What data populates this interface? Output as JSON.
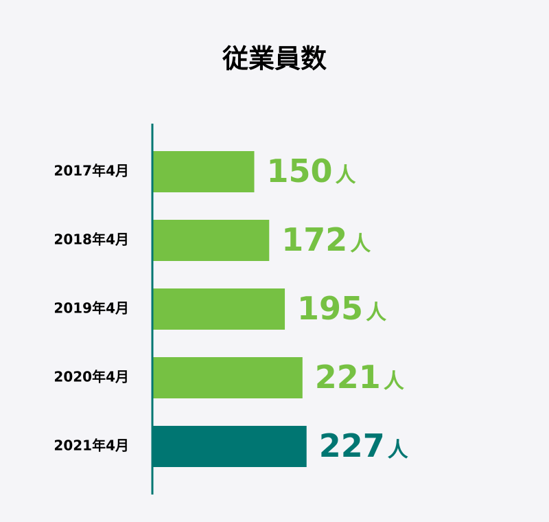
{
  "chart_data": {
    "type": "bar",
    "orientation": "horizontal",
    "title": "従業員数",
    "categories": [
      "2017年4月",
      "2018年4月",
      "2019年4月",
      "2020年4月",
      "2021年4月"
    ],
    "values": [
      150,
      172,
      195,
      221,
      227
    ],
    "unit": "人",
    "colors": [
      "#76c143",
      "#76c143",
      "#76c143",
      "#76c143",
      "#007672"
    ],
    "axis_color": "#007672"
  }
}
